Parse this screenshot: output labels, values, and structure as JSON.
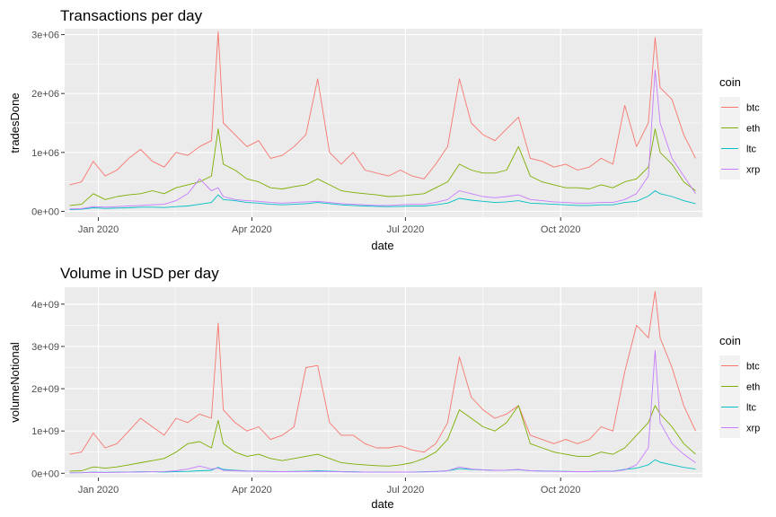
{
  "chart_data": [
    {
      "type": "line",
      "title": "Transactions per day",
      "xlabel": "date",
      "ylabel": "tradesDone",
      "x_ticks": [
        "Jan 2020",
        "Apr 2020",
        "Jul 2020",
        "Oct 2020"
      ],
      "y_ticks": [
        "0e+00",
        "1e+06",
        "2e+06",
        "3e+06"
      ],
      "y_tick_values": [
        0,
        1000000,
        2000000,
        3000000
      ],
      "ylim": [
        -100000,
        3100000
      ],
      "legend_title": "coin",
      "legend_position": "right",
      "grid": true,
      "x": [
        "2019-12-15",
        "2019-12-22",
        "2019-12-29",
        "2020-01-05",
        "2020-01-12",
        "2020-01-19",
        "2020-01-26",
        "2020-02-02",
        "2020-02-09",
        "2020-02-16",
        "2020-02-23",
        "2020-03-01",
        "2020-03-08",
        "2020-03-12",
        "2020-03-15",
        "2020-03-22",
        "2020-03-29",
        "2020-04-05",
        "2020-04-12",
        "2020-04-19",
        "2020-04-26",
        "2020-05-03",
        "2020-05-10",
        "2020-05-17",
        "2020-05-24",
        "2020-05-31",
        "2020-06-07",
        "2020-06-14",
        "2020-06-21",
        "2020-06-28",
        "2020-07-05",
        "2020-07-12",
        "2020-07-19",
        "2020-07-26",
        "2020-08-02",
        "2020-08-09",
        "2020-08-16",
        "2020-08-23",
        "2020-08-30",
        "2020-09-06",
        "2020-09-13",
        "2020-09-20",
        "2020-09-27",
        "2020-10-04",
        "2020-10-11",
        "2020-10-18",
        "2020-10-25",
        "2020-11-01",
        "2020-11-08",
        "2020-11-15",
        "2020-11-22",
        "2020-11-26",
        "2020-11-29",
        "2020-12-06",
        "2020-12-13",
        "2020-12-20"
      ],
      "series": [
        {
          "name": "btc",
          "color": "#F8766D",
          "values": [
            450000,
            500000,
            850000,
            600000,
            700000,
            900000,
            1050000,
            850000,
            750000,
            1000000,
            950000,
            1100000,
            1200000,
            3050000,
            1500000,
            1300000,
            1100000,
            1200000,
            900000,
            950000,
            1100000,
            1300000,
            2250000,
            1000000,
            800000,
            1000000,
            700000,
            650000,
            600000,
            700000,
            600000,
            550000,
            800000,
            1100000,
            2250000,
            1500000,
            1300000,
            1200000,
            1400000,
            1600000,
            900000,
            850000,
            750000,
            800000,
            700000,
            750000,
            900000,
            800000,
            1800000,
            1100000,
            1500000,
            2950000,
            2100000,
            1900000,
            1300000,
            900000
          ]
        },
        {
          "name": "eth",
          "color": "#7CAE00",
          "values": [
            100000,
            120000,
            300000,
            200000,
            250000,
            280000,
            300000,
            350000,
            300000,
            400000,
            450000,
            500000,
            600000,
            1400000,
            800000,
            700000,
            550000,
            500000,
            400000,
            380000,
            420000,
            450000,
            550000,
            450000,
            350000,
            320000,
            300000,
            280000,
            250000,
            260000,
            280000,
            300000,
            400000,
            500000,
            800000,
            700000,
            650000,
            650000,
            700000,
            1100000,
            600000,
            500000,
            450000,
            400000,
            400000,
            380000,
            450000,
            400000,
            500000,
            550000,
            750000,
            1400000,
            1000000,
            800000,
            500000,
            350000
          ]
        },
        {
          "name": "ltc",
          "color": "#00BFC4",
          "values": [
            30000,
            35000,
            60000,
            50000,
            55000,
            60000,
            70000,
            70000,
            65000,
            80000,
            90000,
            120000,
            150000,
            280000,
            200000,
            180000,
            150000,
            140000,
            120000,
            110000,
            120000,
            130000,
            150000,
            130000,
            110000,
            100000,
            90000,
            85000,
            80000,
            85000,
            90000,
            90000,
            110000,
            140000,
            220000,
            190000,
            170000,
            150000,
            160000,
            180000,
            140000,
            130000,
            120000,
            110000,
            100000,
            100000,
            110000,
            110000,
            150000,
            170000,
            260000,
            350000,
            300000,
            250000,
            180000,
            130000
          ]
        },
        {
          "name": "xrp",
          "color": "#C77CFF",
          "values": [
            40000,
            45000,
            80000,
            70000,
            80000,
            90000,
            100000,
            110000,
            120000,
            180000,
            300000,
            550000,
            350000,
            400000,
            250000,
            200000,
            180000,
            170000,
            150000,
            140000,
            150000,
            160000,
            170000,
            150000,
            130000,
            120000,
            110000,
            100000,
            100000,
            110000,
            120000,
            120000,
            150000,
            200000,
            350000,
            300000,
            250000,
            230000,
            250000,
            280000,
            200000,
            180000,
            160000,
            150000,
            140000,
            140000,
            150000,
            150000,
            200000,
            300000,
            600000,
            2400000,
            1500000,
            900000,
            600000,
            300000
          ]
        }
      ]
    },
    {
      "type": "line",
      "title": "Volume in USD per day",
      "xlabel": "date",
      "ylabel": "volumeNotional",
      "x_ticks": [
        "Jan 2020",
        "Apr 2020",
        "Jul 2020",
        "Oct 2020"
      ],
      "y_ticks": [
        "0e+00",
        "1e+09",
        "2e+09",
        "3e+09",
        "4e+09"
      ],
      "y_tick_values": [
        0,
        1000000000,
        2000000000,
        3000000000,
        4000000000
      ],
      "ylim": [
        -100000000,
        4400000000
      ],
      "legend_title": "coin",
      "legend_position": "right",
      "grid": true,
      "x": [
        "2019-12-15",
        "2019-12-22",
        "2019-12-29",
        "2020-01-05",
        "2020-01-12",
        "2020-01-19",
        "2020-01-26",
        "2020-02-02",
        "2020-02-09",
        "2020-02-16",
        "2020-02-23",
        "2020-03-01",
        "2020-03-08",
        "2020-03-12",
        "2020-03-15",
        "2020-03-22",
        "2020-03-29",
        "2020-04-05",
        "2020-04-12",
        "2020-04-19",
        "2020-04-26",
        "2020-05-03",
        "2020-05-10",
        "2020-05-17",
        "2020-05-24",
        "2020-05-31",
        "2020-06-07",
        "2020-06-14",
        "2020-06-21",
        "2020-06-28",
        "2020-07-05",
        "2020-07-12",
        "2020-07-19",
        "2020-07-26",
        "2020-08-02",
        "2020-08-09",
        "2020-08-16",
        "2020-08-23",
        "2020-08-30",
        "2020-09-06",
        "2020-09-13",
        "2020-09-20",
        "2020-09-27",
        "2020-10-04",
        "2020-10-11",
        "2020-10-18",
        "2020-10-25",
        "2020-11-01",
        "2020-11-08",
        "2020-11-15",
        "2020-11-22",
        "2020-11-26",
        "2020-11-29",
        "2020-12-06",
        "2020-12-13",
        "2020-12-20"
      ],
      "series": [
        {
          "name": "btc",
          "color": "#F8766D",
          "values": [
            450000000,
            500000000,
            950000000,
            600000000,
            700000000,
            1000000000,
            1300000000,
            1100000000,
            900000000,
            1300000000,
            1200000000,
            1400000000,
            1300000000,
            3550000000,
            1500000000,
            1200000000,
            1000000000,
            1100000000,
            800000000,
            900000000,
            1100000000,
            2500000000,
            2550000000,
            1200000000,
            900000000,
            900000000,
            700000000,
            600000000,
            600000000,
            650000000,
            550000000,
            500000000,
            700000000,
            1200000000,
            2750000000,
            1800000000,
            1500000000,
            1300000000,
            1400000000,
            1600000000,
            900000000,
            800000000,
            700000000,
            800000000,
            700000000,
            800000000,
            1100000000,
            1000000000,
            2400000000,
            3500000000,
            3200000000,
            4300000000,
            3200000000,
            2500000000,
            1600000000,
            1000000000
          ]
        },
        {
          "name": "eth",
          "color": "#7CAE00",
          "values": [
            50000000,
            60000000,
            150000000,
            120000000,
            150000000,
            200000000,
            250000000,
            300000000,
            350000000,
            500000000,
            700000000,
            750000000,
            600000000,
            1250000000,
            700000000,
            500000000,
            400000000,
            450000000,
            350000000,
            300000000,
            350000000,
            400000000,
            450000000,
            350000000,
            250000000,
            220000000,
            200000000,
            180000000,
            170000000,
            200000000,
            250000000,
            350000000,
            500000000,
            800000000,
            1500000000,
            1300000000,
            1100000000,
            1000000000,
            1200000000,
            1600000000,
            700000000,
            600000000,
            500000000,
            450000000,
            400000000,
            400000000,
            500000000,
            450000000,
            600000000,
            900000000,
            1200000000,
            1600000000,
            1400000000,
            1100000000,
            700000000,
            450000000
          ]
        },
        {
          "name": "ltc",
          "color": "#00BFC4",
          "values": [
            10000000,
            12000000,
            25000000,
            20000000,
            25000000,
            30000000,
            35000000,
            35000000,
            30000000,
            40000000,
            45000000,
            60000000,
            70000000,
            140000000,
            90000000,
            70000000,
            55000000,
            50000000,
            45000000,
            40000000,
            45000000,
            50000000,
            60000000,
            50000000,
            40000000,
            35000000,
            30000000,
            28000000,
            25000000,
            28000000,
            30000000,
            35000000,
            45000000,
            60000000,
            110000000,
            90000000,
            80000000,
            70000000,
            75000000,
            85000000,
            60000000,
            55000000,
            50000000,
            45000000,
            40000000,
            40000000,
            50000000,
            50000000,
            90000000,
            120000000,
            200000000,
            320000000,
            260000000,
            200000000,
            140000000,
            100000000
          ]
        },
        {
          "name": "xrp",
          "color": "#C77CFF",
          "values": [
            10000000,
            12000000,
            20000000,
            18000000,
            20000000,
            25000000,
            30000000,
            35000000,
            40000000,
            60000000,
            100000000,
            170000000,
            100000000,
            120000000,
            70000000,
            60000000,
            50000000,
            45000000,
            40000000,
            38000000,
            40000000,
            42000000,
            45000000,
            40000000,
            35000000,
            30000000,
            28000000,
            26000000,
            25000000,
            28000000,
            30000000,
            32000000,
            40000000,
            60000000,
            150000000,
            100000000,
            80000000,
            70000000,
            75000000,
            90000000,
            60000000,
            50000000,
            45000000,
            40000000,
            38000000,
            38000000,
            45000000,
            45000000,
            80000000,
            200000000,
            600000000,
            2900000000,
            1200000000,
            700000000,
            450000000,
            250000000
          ]
        }
      ]
    }
  ]
}
